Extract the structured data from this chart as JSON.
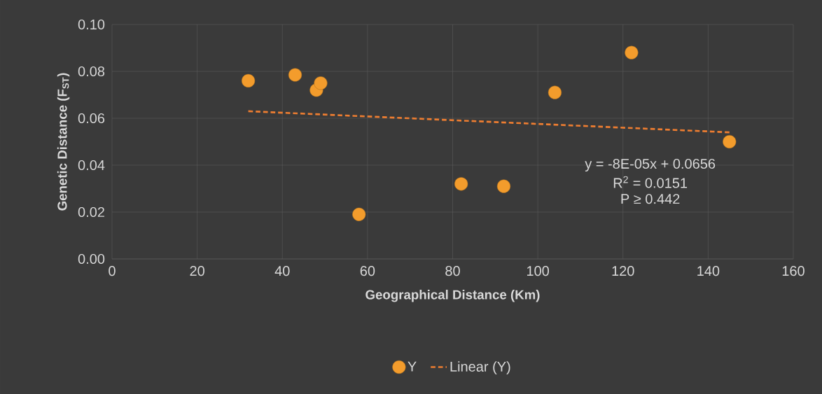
{
  "chart_data": {
    "type": "scatter",
    "xlabel": "Geographical Distance (Km)",
    "ylabel": "Genetic Distance (F$_{ST}$)",
    "xlim": [
      0,
      160
    ],
    "xticks": [
      0,
      20,
      40,
      60,
      80,
      100,
      120,
      140,
      160
    ],
    "ylim": [
      0,
      0.1
    ],
    "yticks": [
      {
        "value": 0,
        "label": "0.00"
      },
      {
        "value": 0.02,
        "label": "0.02"
      },
      {
        "value": 0.04,
        "label": "0.04"
      },
      {
        "value": 0.06,
        "label": "0.06"
      },
      {
        "value": 0.08,
        "label": "0.08"
      },
      {
        "value": 0.1,
        "label": "0.10"
      }
    ],
    "grid": true,
    "legend": "bottom",
    "series": [
      {
        "name": "Y",
        "marker": "circle",
        "color": "#f39c2c",
        "x": [
          32,
          43,
          48,
          49,
          58,
          82,
          92,
          104,
          122,
          145
        ],
        "values": [
          0.076,
          0.0785,
          0.072,
          0.075,
          0.019,
          0.032,
          0.031,
          0.071,
          0.088,
          0.05
        ]
      },
      {
        "name": "Linear (Y)",
        "type": "line",
        "marker": "none",
        "line_style": "dashed",
        "color": "#ed7d31",
        "x": [
          32,
          145
        ],
        "values": [
          0.063,
          0.054
        ]
      }
    ],
    "annotations": [
      "y = -8E-05x + 0.0656",
      "R$^{2}$ = 0.0151",
      "P ≥ 0.442"
    ]
  }
}
